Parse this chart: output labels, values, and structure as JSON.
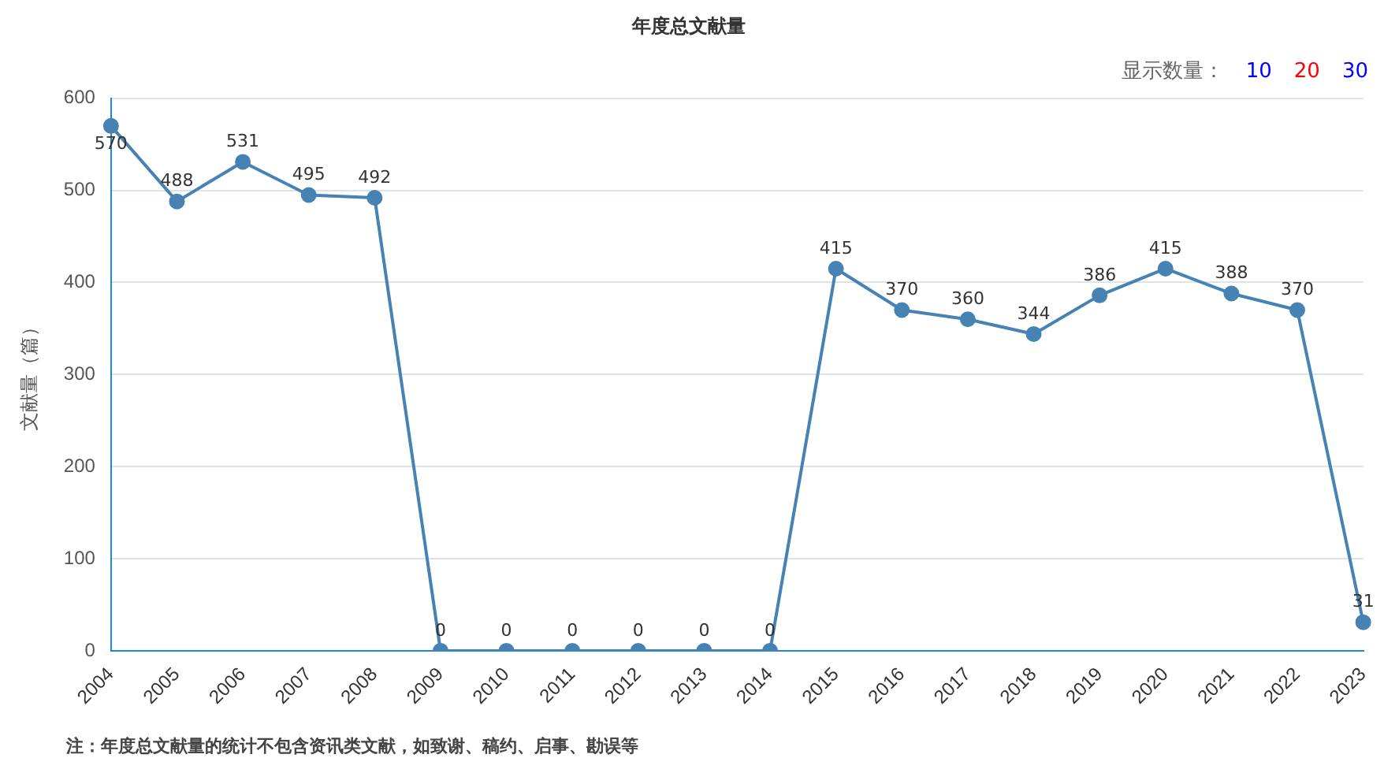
{
  "chart_data": {
    "type": "line",
    "title": "年度总文献量",
    "ylabel": "文献量（篇）",
    "categories": [
      "2004",
      "2005",
      "2006",
      "2007",
      "2008",
      "2009",
      "2010",
      "2011",
      "2012",
      "2013",
      "2014",
      "2015",
      "2016",
      "2017",
      "2018",
      "2019",
      "2020",
      "2021",
      "2022",
      "2023"
    ],
    "series": [
      {
        "color": "#4682b4",
        "values": [
          570,
          488,
          531,
          495,
          492,
          0,
          0,
          0,
          0,
          0,
          0,
          415,
          370,
          360,
          344,
          386,
          415,
          388,
          370,
          31
        ]
      }
    ],
    "ylim": [
      0,
      600
    ],
    "yticks": [
      0,
      100,
      200,
      300,
      400,
      500,
      600
    ],
    "grid": "y",
    "legend": false,
    "marker": "circle",
    "line_style": "solid",
    "data_labels": true,
    "annotations": [
      "显示数量：",
      "10",
      "20",
      "30",
      "注：年度总文献量的统计不包含资讯类文献，如致谢、稿约、启事、勘误等"
    ]
  }
}
